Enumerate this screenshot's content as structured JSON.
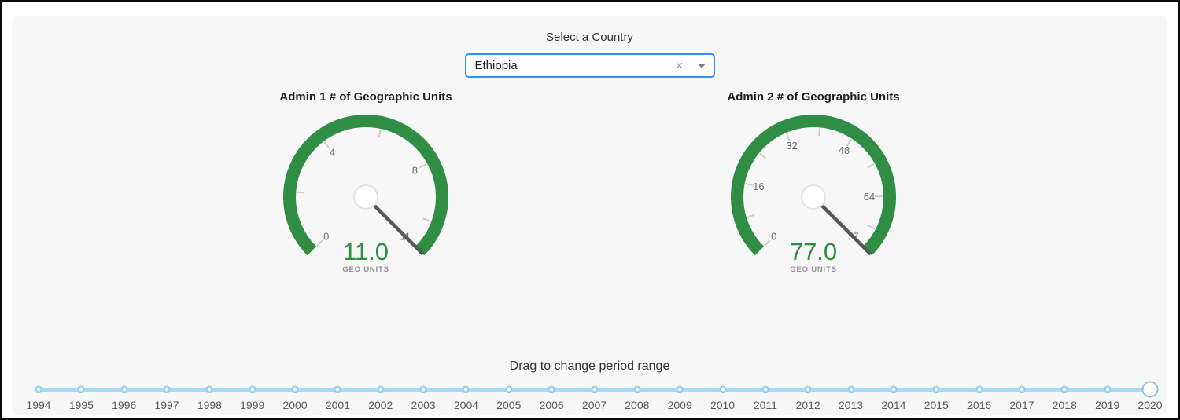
{
  "header": {
    "select_label": "Select a Country",
    "country_value": "Ethiopia",
    "clear_icon": "×"
  },
  "chart_data": [
    {
      "type": "gauge",
      "title": "Admin 1 # of Geographic Units",
      "value": 11,
      "value_display": "11.0",
      "min": 0,
      "max": 11,
      "minor_tick_step": 2,
      "tick_labels": [
        0,
        4,
        8,
        11
      ],
      "sub_label": "GEO UNITS",
      "start_angle": 135,
      "sweep": 270,
      "arc_color": "#2f8e43",
      "value_color": "#2f8e43"
    },
    {
      "type": "gauge",
      "title": "Admin 2 # of Geographic Units",
      "value": 77,
      "value_display": "77.0",
      "min": 0,
      "max": 77,
      "minor_tick_step": 8,
      "tick_labels": [
        0,
        16,
        32,
        48,
        64,
        77
      ],
      "sub_label": "GEO UNITS",
      "start_angle": 135,
      "sweep": 270,
      "arc_color": "#2f8e43",
      "value_color": "#2f8e43"
    }
  ],
  "slider": {
    "caption": "Drag to change period range",
    "years": [
      1994,
      1995,
      1996,
      1997,
      1998,
      1999,
      2000,
      2001,
      2002,
      2003,
      2004,
      2005,
      2006,
      2007,
      2008,
      2009,
      2010,
      2011,
      2012,
      2013,
      2014,
      2015,
      2016,
      2017,
      2018,
      2019,
      2020
    ],
    "selected_year": 2020
  },
  "colors": {
    "panel_bg": "#f7f7f7",
    "gauge_arc": "#2f8e43",
    "gauge_tick": "#cccccc",
    "gauge_tick_label": "#6b6b6b",
    "gauge_needle": "#55575b",
    "gauge_hub_border": "#e3e3e3",
    "gauge_sub_label": "#8f9092",
    "dropdown_border": "#2e90f5",
    "slider_track": "#a7daf3",
    "slider_marker_border": "#8fcdec"
  }
}
